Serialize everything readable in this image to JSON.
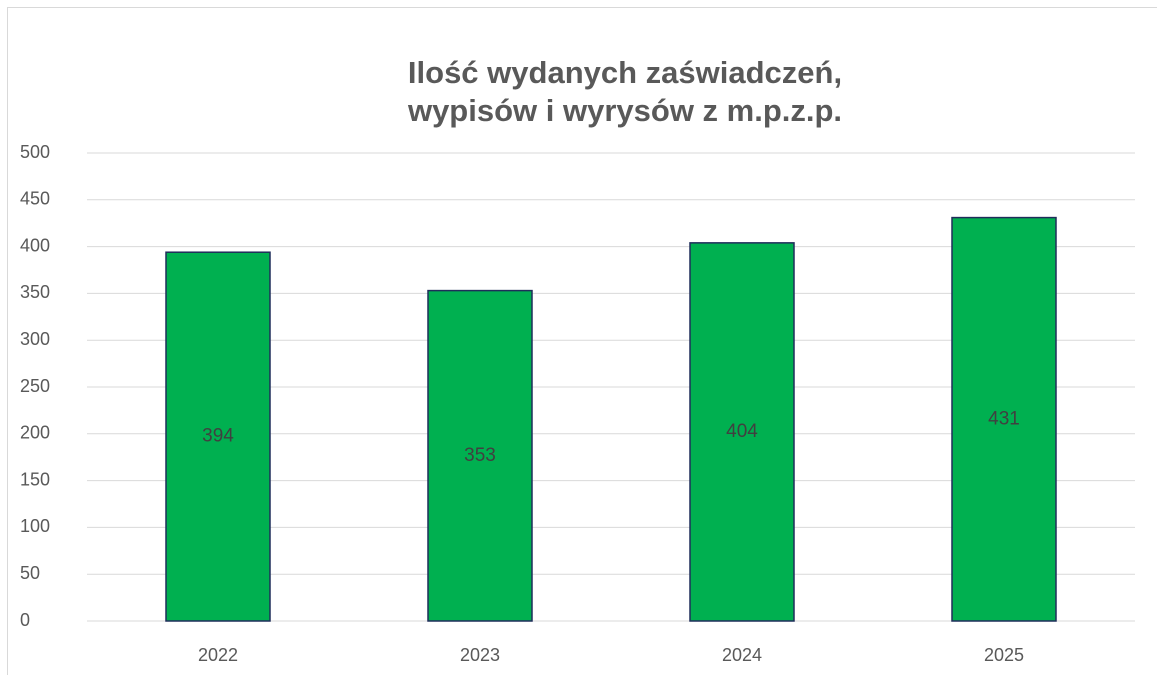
{
  "chart_data": {
    "type": "bar",
    "title": [
      "Ilość wydanych zaświadczeń,",
      "wypisów i wyrysów z m.p.z.p."
    ],
    "categories": [
      "2022",
      "2023",
      "2024",
      "2025"
    ],
    "values": [
      394,
      353,
      404,
      431
    ],
    "color": "#00b050",
    "edge_color": "#1f2d5a",
    "ylim": [
      0,
      500
    ],
    "yticks": [
      0,
      50,
      100,
      150,
      200,
      250,
      300,
      350,
      400,
      450,
      500
    ],
    "grid": true
  }
}
